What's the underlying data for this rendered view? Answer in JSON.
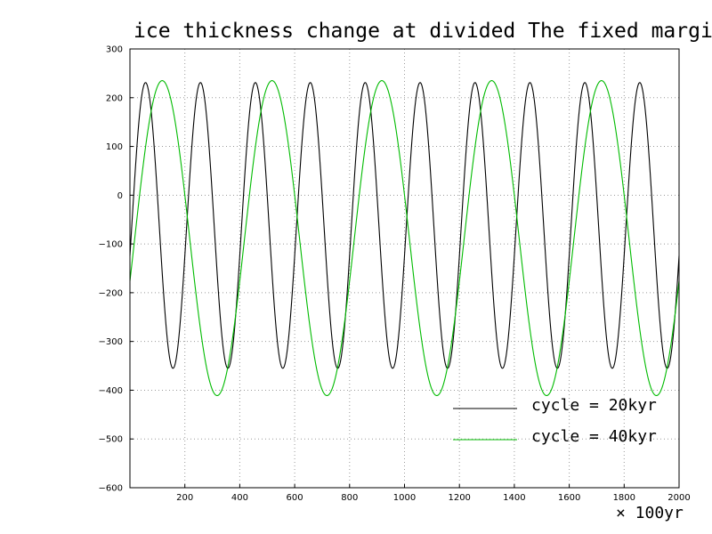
{
  "chart_data": {
    "type": "line",
    "title": "ice thickness  change at divided The fixed margin",
    "x_unit_label": "× 100yr",
    "xlim": [
      0,
      2000
    ],
    "ylim": [
      -600,
      300
    ],
    "x_ticks": [
      200,
      400,
      600,
      800,
      1000,
      1200,
      1400,
      1600,
      1800,
      2000
    ],
    "y_ticks": [
      300,
      200,
      100,
      0,
      -100,
      -200,
      -300,
      -400,
      -500,
      -600
    ],
    "y_tick_labels": [
      "300",
      "200",
      "100",
      "0",
      "−100",
      "−200",
      "−300",
      "−400",
      "−500",
      "−600"
    ],
    "grid": true,
    "legend_position": "bottom-right",
    "series": [
      {
        "name": "cycle = 20kyr",
        "color": "#000000",
        "period": 200,
        "amplitude": 293,
        "offset": -62,
        "x": [
          0,
          50,
          100,
          150,
          200,
          250,
          300,
          350,
          400,
          450,
          500,
          550,
          600,
          650,
          700,
          750,
          800,
          850,
          900,
          950,
          1000,
          1050,
          1100,
          1150,
          1200,
          1250,
          1300,
          1350,
          1400,
          1450,
          1500,
          1550,
          1600,
          1650,
          1700,
          1750,
          1800,
          1850,
          1900,
          1950,
          2000
        ],
        "y": [
          0,
          231,
          -62,
          -355,
          0,
          231,
          -62,
          -355,
          0,
          231,
          -62,
          -355,
          0,
          231,
          -62,
          -355,
          0,
          231,
          -62,
          -355,
          0,
          231,
          -62,
          -355,
          0,
          231,
          -62,
          -355,
          0,
          231,
          -62,
          -355,
          0,
          231,
          -62,
          -355,
          0,
          231,
          -62,
          -355,
          -110
        ]
      },
      {
        "name": "cycle = 40kyr",
        "color": "#00bb00",
        "period": 400,
        "amplitude": 323,
        "offset": -88,
        "x": [
          0,
          100,
          200,
          300,
          400,
          500,
          600,
          700,
          800,
          900,
          1000,
          1100,
          1200,
          1300,
          1400,
          1500,
          1600,
          1700,
          1800,
          1900,
          2000
        ],
        "y": [
          0,
          235,
          -88,
          -411,
          0,
          235,
          -88,
          -411,
          0,
          235,
          -88,
          -411,
          0,
          235,
          -88,
          -411,
          0,
          235,
          -88,
          -411,
          -100
        ]
      }
    ]
  }
}
